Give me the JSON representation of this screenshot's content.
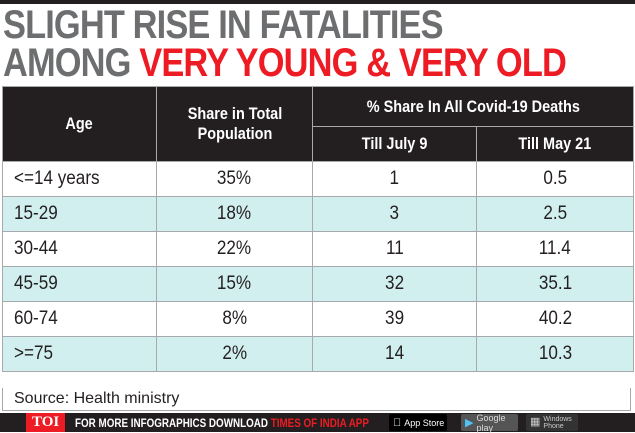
{
  "title": {
    "line1": "SLIGHT RISE IN FATALITIES",
    "line2_gray": "AMONG ",
    "line2_red": "VERY YOUNG & VERY OLD"
  },
  "table": {
    "headers": {
      "age": "Age",
      "share_population": "Share in Total Population",
      "deaths_group": "% Share In All Covid-19 Deaths",
      "till_july": "Till July 9",
      "till_may": "Till May 21"
    },
    "rows": [
      {
        "age": "<=14 years",
        "population": "35%",
        "july": "1",
        "may": "0.5"
      },
      {
        "age": "15-29",
        "population": "18%",
        "july": "3",
        "may": "2.5"
      },
      {
        "age": "30-44",
        "population": "22%",
        "july": "11",
        "may": "11.4"
      },
      {
        "age": "45-59",
        "population": "15%",
        "july": "32",
        "may": "35.1"
      },
      {
        "age": "60-74",
        "population": "8%",
        "july": "39",
        "may": "40.2"
      },
      {
        "age": ">=75",
        "population": "2%",
        "july": "14",
        "may": "10.3"
      }
    ]
  },
  "source": "Source: Health ministry",
  "footer": {
    "logo": "TOI",
    "promo_white": "FOR MORE  INFOGRAPHICS DOWNLOAD ",
    "promo_red": "TIMES OF INDIA  APP",
    "app_store": "App Store",
    "google_play": "Google play",
    "windows_phone": "Windows Phone"
  },
  "colors": {
    "header_bg": "#231f20",
    "title_gray": "#6d6e70",
    "accent_red": "#ed1c24",
    "alt_row": "#d2eff0"
  }
}
